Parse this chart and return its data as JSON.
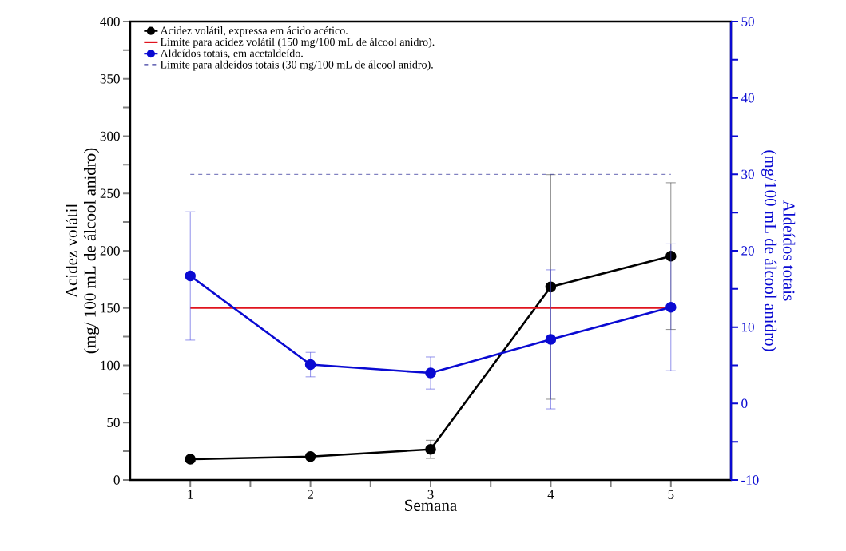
{
  "chart_data": {
    "type": "line",
    "xlabel": "Semana",
    "ylabel": "Acidez volátil\n(mg/ 100 mL de álcool anidro)",
    "y2label": "Aldeídos totais\n(mg/100 mL de álcool anidro)",
    "x": [
      1,
      2,
      3,
      4,
      5
    ],
    "xlim": [
      0.5,
      5.5
    ],
    "xticks": [
      1,
      2,
      3,
      4,
      5
    ],
    "ylim": [
      0,
      400
    ],
    "yticks": [
      0,
      50,
      100,
      150,
      200,
      250,
      300,
      350,
      400
    ],
    "y2lim": [
      -10,
      50
    ],
    "y2ticks": [
      -10,
      0,
      10,
      20,
      30,
      40,
      50
    ],
    "legend": "top left",
    "grid": false,
    "series": [
      {
        "name": "Acidez volátil, expressa em ácido acético.",
        "color": "#000000",
        "marker": "circle",
        "line_style": "solid",
        "values": [
          18.1,
          20.4,
          26.7,
          168.4,
          195.3
        ],
        "errors": [
          null,
          null,
          7.9,
          98,
          64
        ]
      },
      {
        "name": "Limite para acidez volátil (150 mg/100 mL de álcool anidro).",
        "color": "#e0141e",
        "marker": "none",
        "line_style": "solid",
        "values": [
          150,
          150,
          150,
          150,
          150
        ]
      },
      {
        "name": "Aldeídos totais, em acetaldeído.",
        "color": "#0a0ad2",
        "marker": "circle",
        "line_style": "solid",
        "axis": "y2",
        "values": [
          16.7,
          5.1,
          4.0,
          8.4,
          12.6
        ],
        "errors": [
          8.4,
          1.6,
          2.1,
          9.1,
          8.3
        ]
      },
      {
        "name": "Limite para aldeídos totais (30 mg/100 mL de álcool anidro).",
        "color": "#3c3ca0",
        "marker": "none",
        "line_style": "dashed",
        "axis": "y2",
        "values": [
          30,
          30,
          30,
          30,
          30
        ]
      }
    ]
  }
}
